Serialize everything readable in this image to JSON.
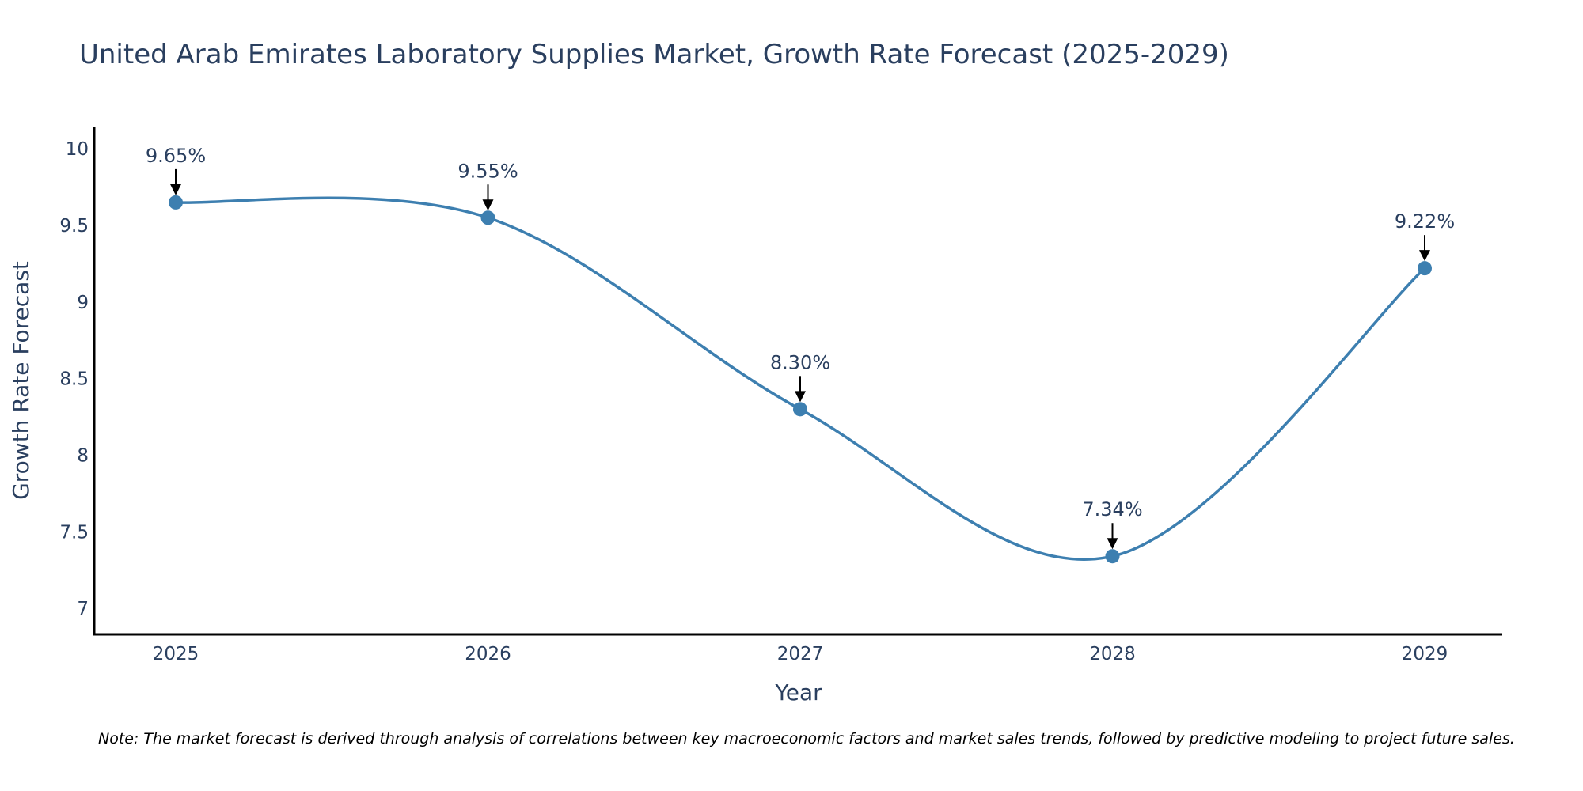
{
  "chart_data": {
    "type": "line",
    "title": "United Arab Emirates Laboratory Supplies Market, Growth Rate Forecast (2025-2029)",
    "xlabel": "Year",
    "ylabel": "Growth Rate Forecast",
    "categories": [
      "2025",
      "2026",
      "2027",
      "2028",
      "2029"
    ],
    "values": [
      9.65,
      9.55,
      8.3,
      7.34,
      9.22
    ],
    "data_labels": [
      "9.65%",
      "9.55%",
      "8.30%",
      "7.34%",
      "9.22%"
    ],
    "y_ticks": [
      7,
      7.5,
      8,
      8.5,
      9,
      9.5,
      10
    ],
    "y_tick_labels": [
      "7",
      "7.5",
      "8",
      "8.5",
      "9",
      "9.5",
      "10"
    ],
    "ylim": [
      6.83,
      10.14
    ],
    "line_shape": "spline",
    "grid": false,
    "legend": "none",
    "note": "Note: The market forecast is derived through analysis of correlations between key macroeconomic factors and market sales trends, followed by predictive modeling to project future sales.",
    "colors": {
      "line": "#3d7fb0",
      "marker": "#3d7fb0",
      "arrow": "#000000",
      "axis": "#000000",
      "text": "#2a3f5f"
    }
  }
}
